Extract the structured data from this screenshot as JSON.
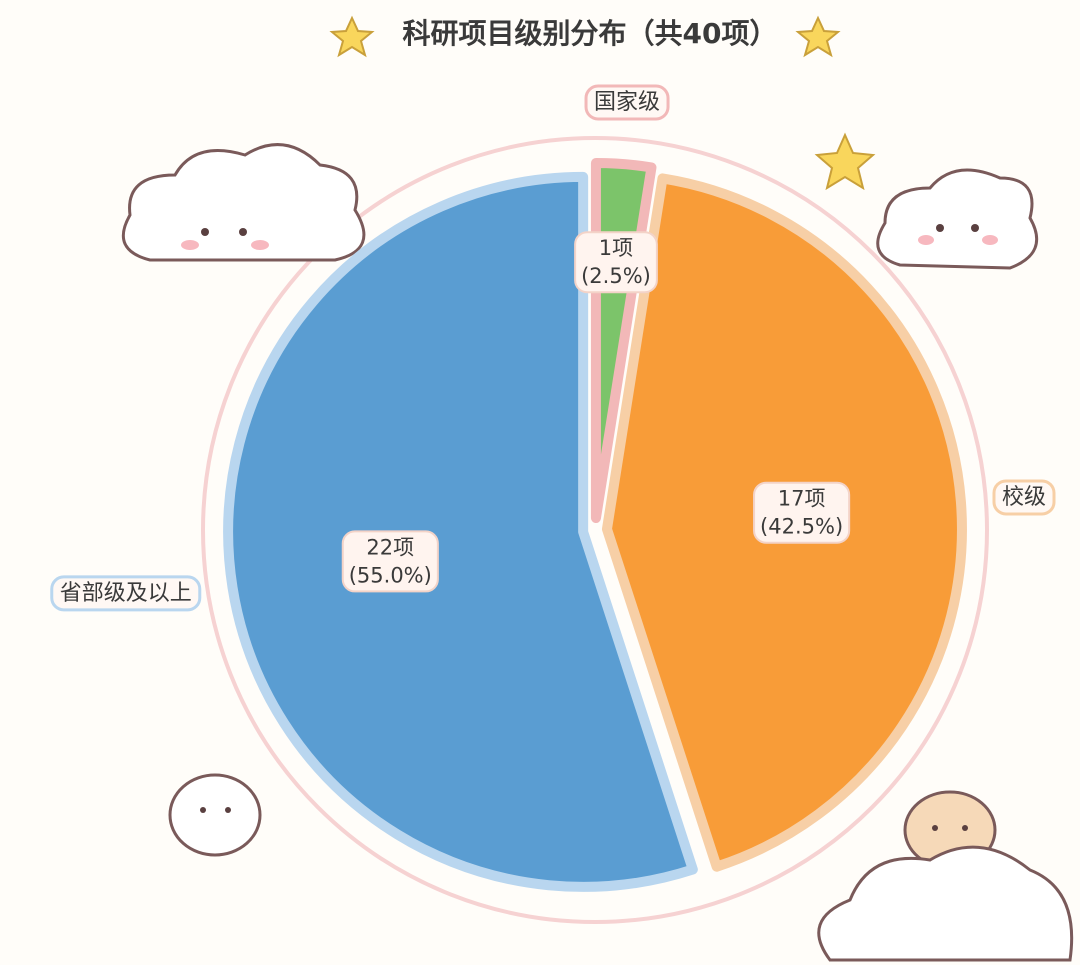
{
  "chart_data": {
    "type": "pie",
    "title": "科研项目级别分布（共40项）",
    "categories": [
      "国家级",
      "校级",
      "省部级及以上"
    ],
    "values": [
      1,
      17,
      22
    ],
    "value_labels": [
      "1项",
      "17项",
      "22项"
    ],
    "percent_labels": [
      "(2.5%)",
      "(42.5%)",
      "(55.0%)"
    ],
    "colors": [
      "#7cc46a",
      "#f89c38",
      "#5a9dd2"
    ],
    "label_borders": [
      "#f2b8b8",
      "#f7cfa6",
      "#b9d6ef"
    ]
  }
}
